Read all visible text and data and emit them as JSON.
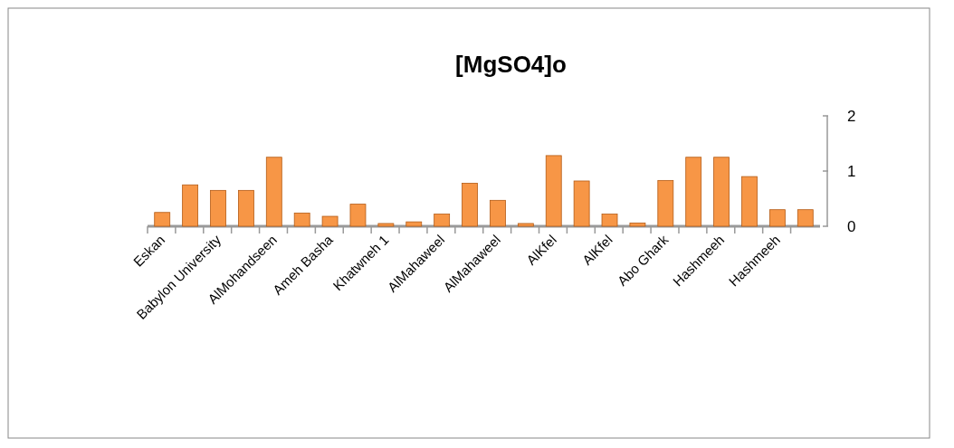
{
  "chart_data": {
    "type": "bar",
    "title": "[MgSO4]o",
    "categories": [
      "Eskan",
      null,
      "Babylon University",
      null,
      "AlMohandseen",
      null,
      "Ameh Basha",
      null,
      "Khatwneh 1",
      null,
      "AlMahaweel",
      null,
      "AlMahaweel",
      null,
      "AlKfel",
      null,
      "AlKfel",
      null,
      "Abo Ghark",
      null,
      "Hashmeeh",
      null,
      "Hashmeeh",
      null
    ],
    "values": [
      0.25,
      0.75,
      0.65,
      0.65,
      1.25,
      0.24,
      0.18,
      0.4,
      0.05,
      0.08,
      0.22,
      0.78,
      0.47,
      0.05,
      1.28,
      0.82,
      0.22,
      0.06,
      0.83,
      1.25,
      1.25,
      0.9,
      0.3,
      0.3
    ],
    "color": "#f79646",
    "ylim": [
      0,
      2
    ],
    "yticks": [
      0,
      1,
      2
    ]
  }
}
